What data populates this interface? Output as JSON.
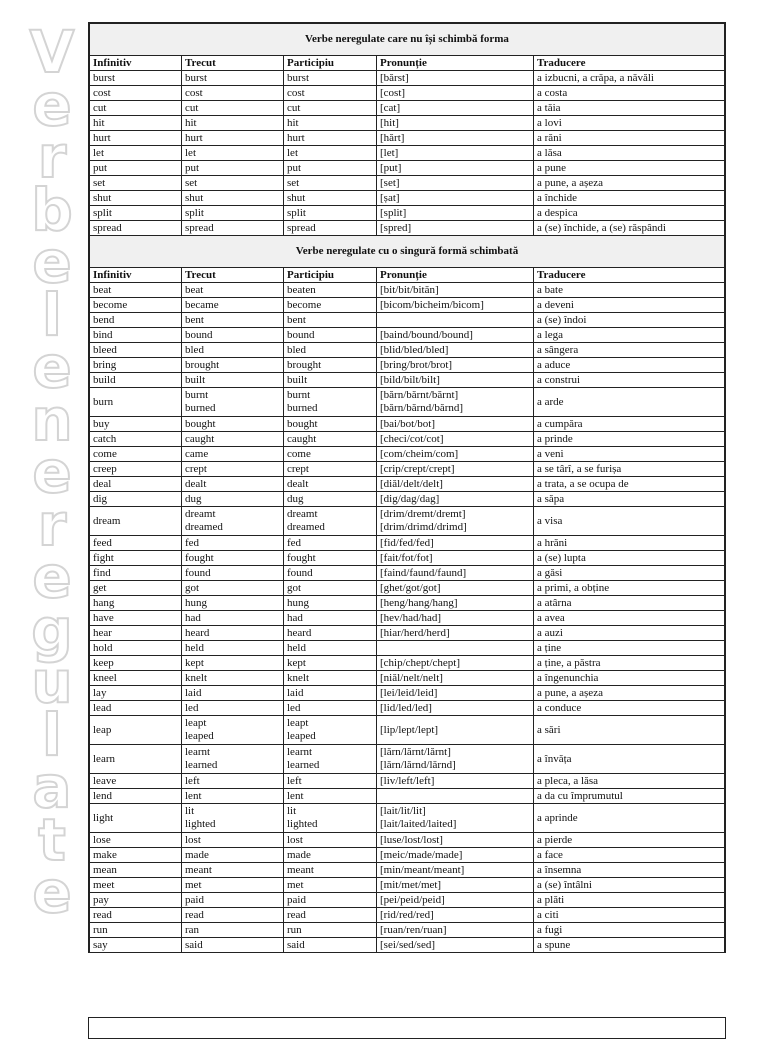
{
  "watermark": "Verbele neregulate",
  "headers": [
    "Infinitiv",
    "Trecut",
    "Participiu",
    "Pronunție",
    "Traducere"
  ],
  "sections": [
    {
      "title": "Verbe neregulate care nu își schimbă forma",
      "headers": [
        "Infinitiv",
        "Trecut",
        "Participiu",
        "Pronunție",
        "Traducere"
      ],
      "rows": [
        [
          "burst",
          "burst",
          "burst",
          "[bărst]",
          "a izbucni, a crăpa, a năvăli"
        ],
        [
          "cost",
          "cost",
          "cost",
          "[cost]",
          "a costa"
        ],
        [
          "cut",
          "cut",
          "cut",
          "[cat]",
          "a tăia"
        ],
        [
          "hit",
          "hit",
          "hit",
          "[hit]",
          "a lovi"
        ],
        [
          "hurt",
          "hurt",
          "hurt",
          "[hărt]",
          "a răni"
        ],
        [
          "let",
          "let",
          "let",
          "[let]",
          "a lăsa"
        ],
        [
          "put",
          "put",
          "put",
          "[put]",
          "a pune"
        ],
        [
          "set",
          "set",
          "set",
          "[set]",
          "a pune, a așeza"
        ],
        [
          "shut",
          "shut",
          "shut",
          "[șat]",
          "a închide"
        ],
        [
          "split",
          "split",
          "split",
          "[split]",
          "a despica"
        ],
        [
          "spread",
          "spread",
          "spread",
          "[spred]",
          "a (se) închide, a (se) răspândi"
        ]
      ]
    },
    {
      "title": "Verbe neregulate cu o singură formă schimbată",
      "headers": [
        "Infinitiv",
        "Trecut",
        "Participiu",
        "Pronunție",
        "Traducere"
      ],
      "rows": [
        [
          "beat",
          "beat",
          "beaten",
          "[bit/bit/bităn]",
          "a bate"
        ],
        [
          "become",
          "became",
          "become",
          "[bicom/bicheim/bicom]",
          "a deveni"
        ],
        [
          "bend",
          "bent",
          "bent",
          "",
          "a (se) îndoi"
        ],
        [
          "bind",
          "bound",
          "bound",
          "[baind/bound/bound]",
          "a lega"
        ],
        [
          "bleed",
          "bled",
          "bled",
          "[blid/bled/bled]",
          "a sângera"
        ],
        [
          "bring",
          "brought",
          "brought",
          "[bring/brot/brot]",
          "a aduce"
        ],
        [
          "build",
          "built",
          "built",
          "[bild/bilt/bilt]",
          "a construi"
        ],
        [
          "burn",
          "burnt\nburned",
          "burnt\nburned",
          "[bărn/bărnt/bărnt]\n[bărn/bărnd/bărnd]",
          "a arde"
        ],
        [
          "buy",
          "bought",
          "bought",
          "[bai/bot/bot]",
          "a cumpăra"
        ],
        [
          "catch",
          "caught",
          "caught",
          "[checi/cot/cot]",
          "a prinde"
        ],
        [
          "come",
          "came",
          "come",
          "[com/cheim/com]",
          "a veni"
        ],
        [
          "creep",
          "crept",
          "crept",
          "[crip/crept/crept]",
          "a se târî, a se furișa"
        ],
        [
          "deal",
          "dealt",
          "dealt",
          "[diăl/delt/delt]",
          "a trata, a se ocupa de"
        ],
        [
          "dig",
          "dug",
          "dug",
          "[dig/dag/dag]",
          "a săpa"
        ],
        [
          "dream",
          "dreamt\ndreamed",
          "dreamt\ndreamed",
          "[drim/dremt/dremt]\n[drim/drimd/drimd]",
          "a visa"
        ],
        [
          "feed",
          "fed",
          "fed",
          "[fid/fed/fed]",
          "a hrăni"
        ],
        [
          "fight",
          "fought",
          "fought",
          "[fait/fot/fot]",
          "a (se) lupta"
        ],
        [
          "find",
          "found",
          "found",
          "[faind/faund/faund]",
          "a găsi"
        ],
        [
          "get",
          "got",
          "got",
          "[ghet/got/got]",
          "a primi, a obține"
        ],
        [
          "hang",
          "hung",
          "hung",
          "[heng/hang/hang]",
          "a atârna"
        ],
        [
          "have",
          "had",
          "had",
          "[hev/had/had]",
          "a avea"
        ],
        [
          "hear",
          "heard",
          "heard",
          "[hiar/herd/herd]",
          "a auzi"
        ],
        [
          "hold",
          "held",
          "held",
          "",
          "a ține"
        ],
        [
          "keep",
          "kept",
          "kept",
          "[chip/chept/chept]",
          "a ține, a păstra"
        ],
        [
          "kneel",
          "knelt",
          "knelt",
          "[niăl/nelt/nelt]",
          "a îngenunchia"
        ],
        [
          "lay",
          "laid",
          "laid",
          "[lei/leid/leid]",
          "a pune, a așeza"
        ],
        [
          "lead",
          "led",
          "led",
          "[lid/led/led]",
          "a conduce"
        ],
        [
          "leap",
          "leapt\nleaped",
          "leapt\nleaped",
          "[lip/lept/lept]",
          "a sări"
        ],
        [
          "learn",
          "learnt\nlearned",
          "learnt\nlearned",
          "[lărn/lărnt/lărnt]\n[lărn/lărnd/lărnd]",
          "a învăța"
        ],
        [
          "leave",
          "left",
          "left",
          "[liv/left/left]",
          "a pleca, a lăsa"
        ],
        [
          "lend",
          "lent",
          "lent",
          "",
          "a da cu împrumutul"
        ],
        [
          "light",
          "lit\nlighted",
          "lit\nlighted",
          "[lait/lit/lit]\n[lait/laited/laited]",
          "a aprinde"
        ],
        [
          "lose",
          "lost",
          "lost",
          "[luse/lost/lost]",
          "a pierde"
        ],
        [
          "make",
          "made",
          "made",
          "[meic/made/made]",
          "a face"
        ],
        [
          "mean",
          "meant",
          "meant",
          "[min/meant/meant]",
          "a însemna"
        ],
        [
          "meet",
          "met",
          "met",
          "[mit/met/met]",
          "a (se) întâlni"
        ],
        [
          "pay",
          "paid",
          "paid",
          "[pei/peid/peid]",
          "a plăti"
        ],
        [
          "read",
          "read",
          "read",
          "[rid/red/red]",
          "a citi"
        ],
        [
          "run",
          "ran",
          "run",
          "[ruan/ren/ruan]",
          "a fugi"
        ],
        [
          "say",
          "said",
          "said",
          "[sei/sed/sed]",
          "a spune"
        ]
      ]
    }
  ]
}
